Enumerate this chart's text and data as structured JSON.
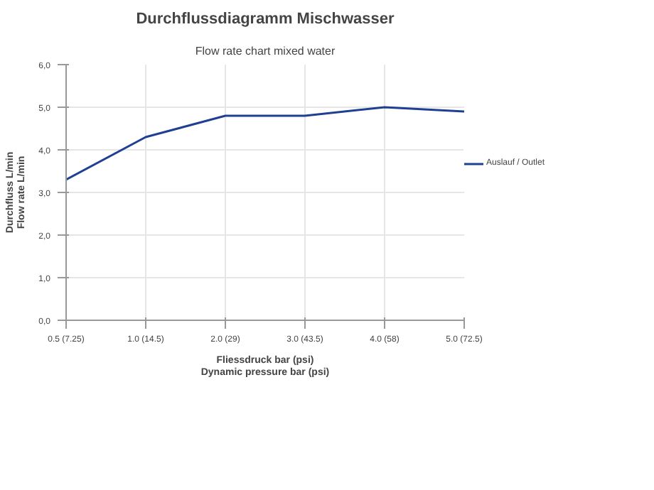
{
  "chart_data": {
    "type": "line",
    "title": "Durchflussdiagramm Mischwasser",
    "subtitle": "Flow rate chart mixed water",
    "xlabel": "Fliessdruck bar (psi)\nDynamic pressure bar (psi)",
    "ylabel": "Durchfluss L/min\nFlow rate L/min",
    "categories": [
      "0.5 (7.25)",
      "1.0 (14.5)",
      "2.0 (29)",
      "3.0 (43.5)",
      "4.0 (58)",
      "5.0 (72.5)"
    ],
    "series": [
      {
        "name": "Auslauf / Outlet",
        "color": "#1f3f93",
        "values": [
          3.3,
          4.3,
          4.8,
          4.8,
          5.0,
          4.9
        ]
      }
    ],
    "ylim": [
      0,
      6
    ],
    "yticks": [
      {
        "value": 0,
        "label": "0,0"
      },
      {
        "value": 1,
        "label": "1,0"
      },
      {
        "value": 2,
        "label": "2,0"
      },
      {
        "value": 3,
        "label": "3,0"
      },
      {
        "value": 4,
        "label": "4,0"
      },
      {
        "value": 5,
        "label": "5,0"
      },
      {
        "value": 6,
        "label": "6,0"
      }
    ],
    "grid": true,
    "legend": "right",
    "line_style": "solid"
  }
}
